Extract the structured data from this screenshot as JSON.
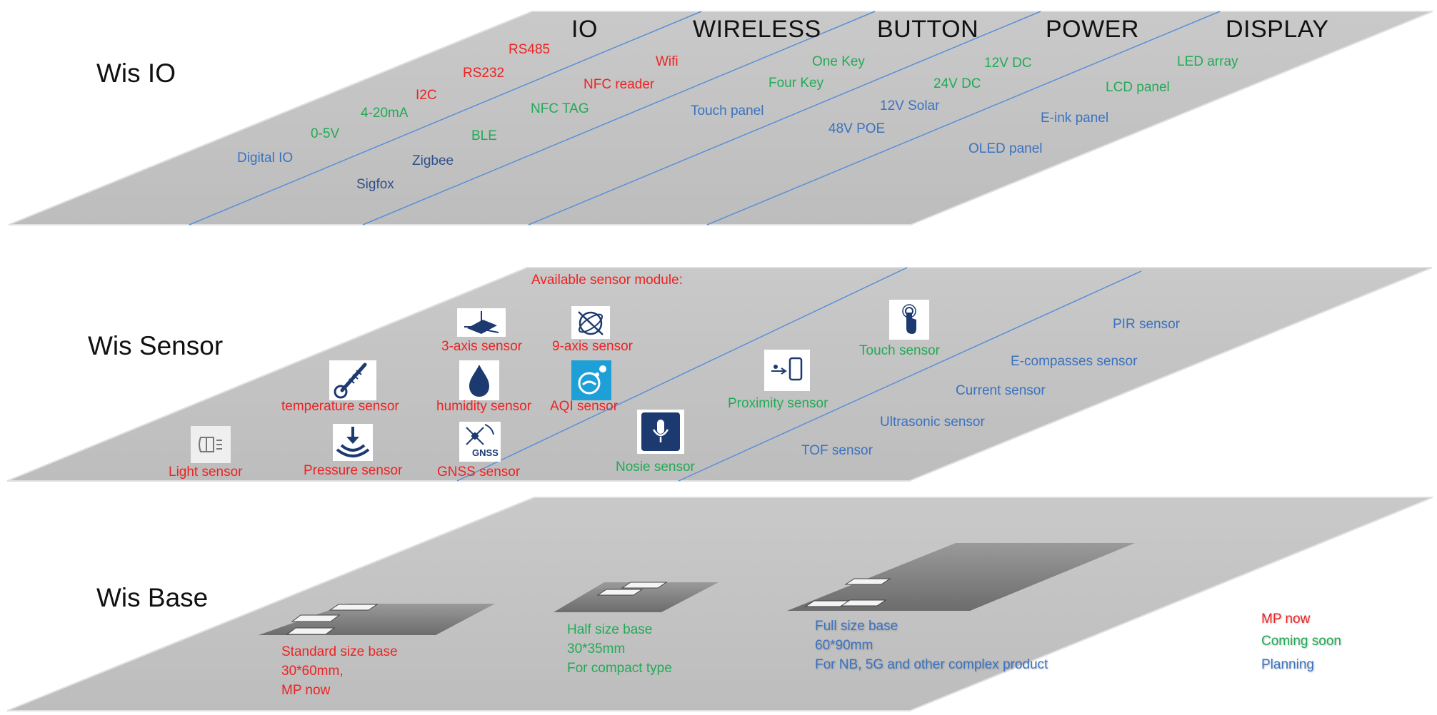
{
  "colors": {
    "red": "#ee2222",
    "green": "#22aa55",
    "blue": "#3a72c0",
    "navy": "#2e4f8a",
    "plane": "#c8c8c8",
    "divider": "#5b8fd9",
    "board": "#808080"
  },
  "io": {
    "title": "Wis IO",
    "columns": [
      "IO",
      "WIRELESS",
      "BUTTON",
      "POWER",
      "DISPLAY"
    ],
    "items": [
      "RS485",
      "RS232",
      "I2C",
      "4-20mA",
      "0-5V",
      "Digital IO",
      "Wifi",
      "NFC reader",
      "NFC TAG",
      "BLE",
      "Zigbee",
      "Sigfox",
      "One Key",
      "Four Key",
      "Touch panel",
      "12V DC",
      "24V DC",
      "12V Solar",
      "48V POE",
      "LED array",
      "LCD panel",
      "E-ink panel",
      "OLED panel"
    ]
  },
  "sensor": {
    "title": "Wis Sensor",
    "header": "Available sensor module:",
    "items": [
      {
        "label": "3-axis sensor",
        "icon": "accelerometer-icon"
      },
      {
        "label": "9-axis sensor",
        "icon": "gyroscope-icon"
      },
      {
        "label": "temperature sensor",
        "icon": "thermometer-icon"
      },
      {
        "label": "humidity sensor",
        "icon": "water-drop-icon"
      },
      {
        "label": "AQI sensor",
        "icon": "air-quality-icon"
      },
      {
        "label": "Light sensor",
        "icon": "light-icon"
      },
      {
        "label": "Pressure sensor",
        "icon": "pressure-icon"
      },
      {
        "label": "GNSS sensor",
        "icon": "gnss-satellite-icon"
      },
      {
        "label": "Nosie sensor",
        "icon": "microphone-icon"
      },
      {
        "label": "Proximity sensor",
        "icon": "proximity-icon"
      },
      {
        "label": "Touch sensor",
        "icon": "touch-icon"
      },
      {
        "label": "PIR sensor"
      },
      {
        "label": "E-compasses sensor"
      },
      {
        "label": "Current sensor"
      },
      {
        "label": "Ultrasonic sensor"
      },
      {
        "label": "TOF sensor"
      }
    ],
    "gnss_icon_text": "GNSS"
  },
  "base": {
    "title": "Wis Base",
    "boards": [
      {
        "lines": [
          "Standard size base",
          "30*60mm,",
          "MP now"
        ]
      },
      {
        "lines": [
          "Half size base",
          "30*35mm",
          "For compact type"
        ]
      },
      {
        "lines": [
          "Full size base",
          "60*90mm",
          "For NB, 5G and other complex product"
        ]
      }
    ]
  },
  "legend": {
    "mp_now": "MP now",
    "coming_soon": "Coming soon",
    "planning": "Planning"
  }
}
